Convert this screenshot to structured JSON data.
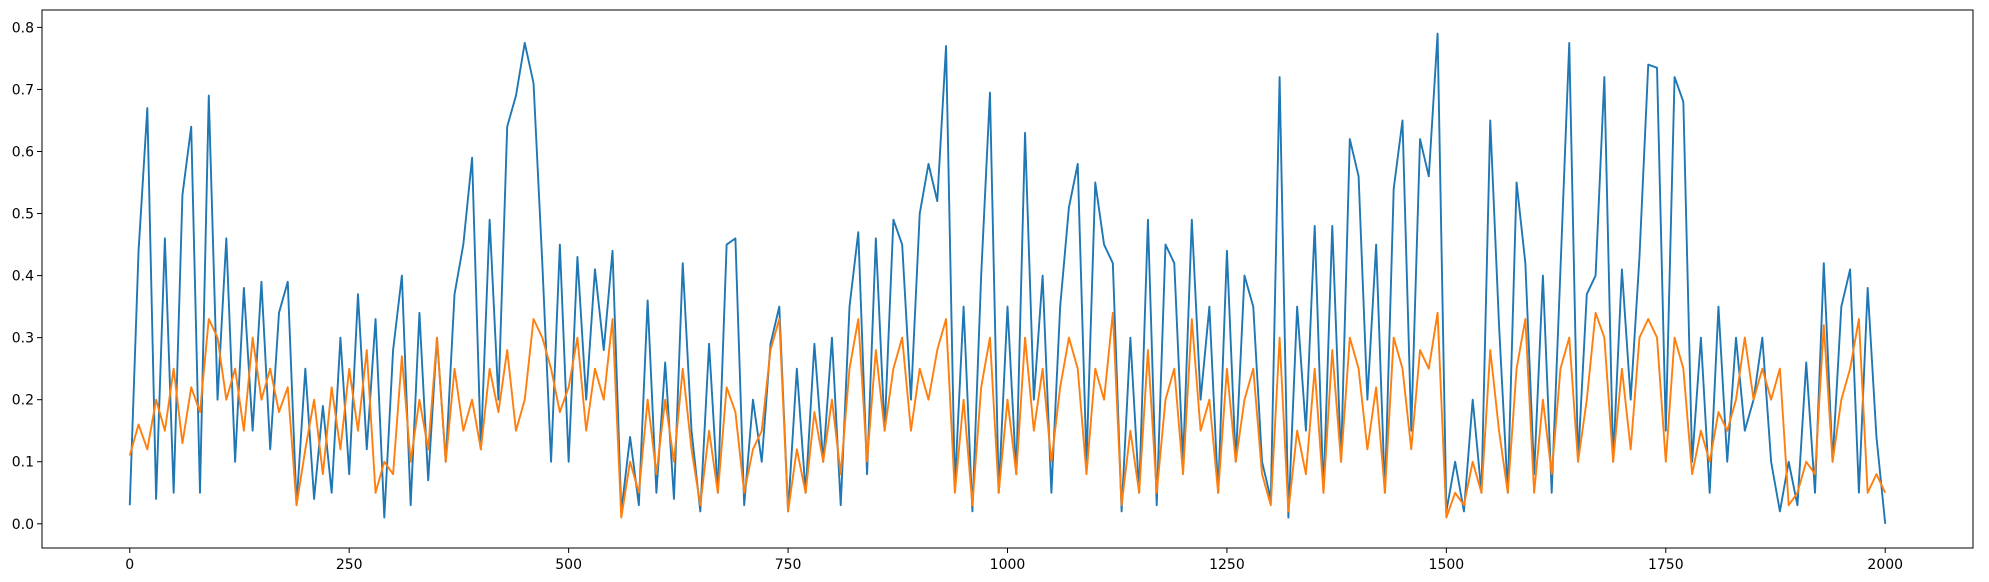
{
  "chart_data": {
    "type": "line",
    "x": [
      0,
      10,
      20,
      30,
      40,
      50,
      60,
      70,
      80,
      90,
      100,
      110,
      120,
      130,
      140,
      150,
      160,
      170,
      180,
      190,
      200,
      210,
      220,
      230,
      240,
      250,
      260,
      270,
      280,
      290,
      300,
      310,
      320,
      330,
      340,
      350,
      360,
      370,
      380,
      390,
      400,
      410,
      420,
      430,
      440,
      450,
      460,
      470,
      480,
      490,
      500,
      510,
      520,
      530,
      540,
      550,
      560,
      570,
      580,
      590,
      600,
      610,
      620,
      630,
      640,
      650,
      660,
      670,
      680,
      690,
      700,
      710,
      720,
      730,
      740,
      750,
      760,
      770,
      780,
      790,
      800,
      810,
      820,
      830,
      840,
      850,
      860,
      870,
      880,
      890,
      900,
      910,
      920,
      930,
      940,
      950,
      960,
      970,
      980,
      990,
      1000,
      1010,
      1020,
      1030,
      1040,
      1050,
      1060,
      1070,
      1080,
      1090,
      1100,
      1110,
      1120,
      1130,
      1140,
      1150,
      1160,
      1170,
      1180,
      1190,
      1200,
      1210,
      1220,
      1230,
      1240,
      1250,
      1260,
      1270,
      1280,
      1290,
      1300,
      1310,
      1320,
      1330,
      1340,
      1350,
      1360,
      1370,
      1380,
      1390,
      1400,
      1410,
      1420,
      1430,
      1440,
      1450,
      1460,
      1470,
      1480,
      1490,
      1500,
      1510,
      1520,
      1530,
      1540,
      1550,
      1560,
      1570,
      1580,
      1590,
      1600,
      1610,
      1620,
      1630,
      1640,
      1650,
      1660,
      1670,
      1680,
      1690,
      1700,
      1710,
      1720,
      1730,
      1740,
      1750,
      1760,
      1770,
      1780,
      1790,
      1800,
      1810,
      1820,
      1830,
      1840,
      1850,
      1860,
      1870,
      1880,
      1890,
      1900,
      1910,
      1920,
      1930,
      1940,
      1950,
      1960,
      1970,
      1980,
      1990,
      2000
    ],
    "series": [
      {
        "color": "#1f77b4",
        "values": [
          0.03,
          0.44,
          0.67,
          0.04,
          0.46,
          0.05,
          0.53,
          0.64,
          0.05,
          0.69,
          0.2,
          0.46,
          0.1,
          0.38,
          0.15,
          0.39,
          0.12,
          0.34,
          0.39,
          0.03,
          0.25,
          0.04,
          0.19,
          0.05,
          0.3,
          0.08,
          0.37,
          0.12,
          0.33,
          0.01,
          0.28,
          0.4,
          0.03,
          0.34,
          0.07,
          0.3,
          0.1,
          0.37,
          0.45,
          0.59,
          0.12,
          0.49,
          0.2,
          0.64,
          0.69,
          0.775,
          0.71,
          0.42,
          0.1,
          0.45,
          0.1,
          0.43,
          0.2,
          0.41,
          0.28,
          0.44,
          0.02,
          0.14,
          0.03,
          0.36,
          0.05,
          0.26,
          0.04,
          0.42,
          0.15,
          0.02,
          0.29,
          0.05,
          0.45,
          0.46,
          0.03,
          0.2,
          0.1,
          0.29,
          0.35,
          0.02,
          0.25,
          0.05,
          0.29,
          0.1,
          0.3,
          0.03,
          0.35,
          0.47,
          0.08,
          0.46,
          0.15,
          0.49,
          0.45,
          0.2,
          0.5,
          0.58,
          0.52,
          0.77,
          0.06,
          0.35,
          0.02,
          0.4,
          0.695,
          0.05,
          0.35,
          0.08,
          0.63,
          0.2,
          0.4,
          0.05,
          0.35,
          0.51,
          0.58,
          0.1,
          0.55,
          0.45,
          0.42,
          0.02,
          0.3,
          0.05,
          0.49,
          0.03,
          0.45,
          0.42,
          0.1,
          0.49,
          0.2,
          0.35,
          0.05,
          0.44,
          0.1,
          0.4,
          0.35,
          0.1,
          0.04,
          0.72,
          0.01,
          0.35,
          0.15,
          0.48,
          0.05,
          0.48,
          0.1,
          0.62,
          0.56,
          0.2,
          0.45,
          0.05,
          0.54,
          0.65,
          0.15,
          0.62,
          0.56,
          0.79,
          0.02,
          0.1,
          0.02,
          0.2,
          0.05,
          0.65,
          0.32,
          0.05,
          0.55,
          0.42,
          0.08,
          0.4,
          0.05,
          0.41,
          0.775,
          0.1,
          0.37,
          0.4,
          0.72,
          0.1,
          0.41,
          0.2,
          0.43,
          0.74,
          0.735,
          0.15,
          0.72,
          0.68,
          0.1,
          0.3,
          0.05,
          0.35,
          0.1,
          0.3,
          0.15,
          0.2,
          0.3,
          0.1,
          0.02,
          0.1,
          0.03,
          0.26,
          0.05,
          0.42,
          0.1,
          0.35,
          0.41,
          0.05,
          0.38,
          0.14,
          0.0
        ]
      },
      {
        "color": "#ff7f0e",
        "values": [
          0.11,
          0.16,
          0.12,
          0.2,
          0.15,
          0.25,
          0.13,
          0.22,
          0.18,
          0.33,
          0.3,
          0.2,
          0.25,
          0.15,
          0.3,
          0.2,
          0.25,
          0.18,
          0.22,
          0.03,
          0.12,
          0.2,
          0.08,
          0.22,
          0.12,
          0.25,
          0.15,
          0.28,
          0.05,
          0.1,
          0.08,
          0.27,
          0.1,
          0.2,
          0.12,
          0.3,
          0.1,
          0.25,
          0.15,
          0.2,
          0.12,
          0.25,
          0.18,
          0.28,
          0.15,
          0.2,
          0.33,
          0.3,
          0.25,
          0.18,
          0.22,
          0.3,
          0.15,
          0.25,
          0.2,
          0.33,
          0.01,
          0.1,
          0.05,
          0.2,
          0.08,
          0.2,
          0.1,
          0.25,
          0.12,
          0.03,
          0.15,
          0.05,
          0.22,
          0.18,
          0.05,
          0.12,
          0.15,
          0.28,
          0.33,
          0.02,
          0.12,
          0.05,
          0.18,
          0.1,
          0.2,
          0.08,
          0.25,
          0.33,
          0.1,
          0.28,
          0.15,
          0.25,
          0.3,
          0.15,
          0.25,
          0.2,
          0.28,
          0.33,
          0.05,
          0.2,
          0.03,
          0.22,
          0.3,
          0.05,
          0.2,
          0.08,
          0.3,
          0.15,
          0.25,
          0.1,
          0.22,
          0.3,
          0.25,
          0.08,
          0.25,
          0.2,
          0.34,
          0.03,
          0.15,
          0.05,
          0.28,
          0.05,
          0.2,
          0.25,
          0.08,
          0.33,
          0.15,
          0.2,
          0.05,
          0.25,
          0.1,
          0.2,
          0.25,
          0.08,
          0.03,
          0.3,
          0.02,
          0.15,
          0.08,
          0.25,
          0.05,
          0.28,
          0.1,
          0.3,
          0.25,
          0.12,
          0.22,
          0.05,
          0.3,
          0.25,
          0.12,
          0.28,
          0.25,
          0.34,
          0.01,
          0.05,
          0.03,
          0.1,
          0.05,
          0.28,
          0.15,
          0.05,
          0.25,
          0.33,
          0.05,
          0.2,
          0.08,
          0.25,
          0.3,
          0.1,
          0.2,
          0.34,
          0.3,
          0.1,
          0.25,
          0.12,
          0.3,
          0.33,
          0.3,
          0.1,
          0.3,
          0.25,
          0.08,
          0.15,
          0.1,
          0.18,
          0.15,
          0.2,
          0.3,
          0.2,
          0.25,
          0.2,
          0.25,
          0.03,
          0.05,
          0.1,
          0.08,
          0.32,
          0.1,
          0.2,
          0.25,
          0.33,
          0.05,
          0.08,
          0.05
        ]
      }
    ],
    "xlim": [
      -100,
      2100
    ],
    "ylim": [
      -0.039,
      0.828
    ],
    "xticks": [
      0,
      250,
      500,
      750,
      1000,
      1250,
      1500,
      1750,
      2000
    ],
    "yticks": [
      {
        "value": 0,
        "label": "0.0"
      },
      0.1,
      0.2,
      0.3,
      0.4,
      0.5,
      0.6,
      0.7,
      0.8
    ],
    "grid": false
  }
}
